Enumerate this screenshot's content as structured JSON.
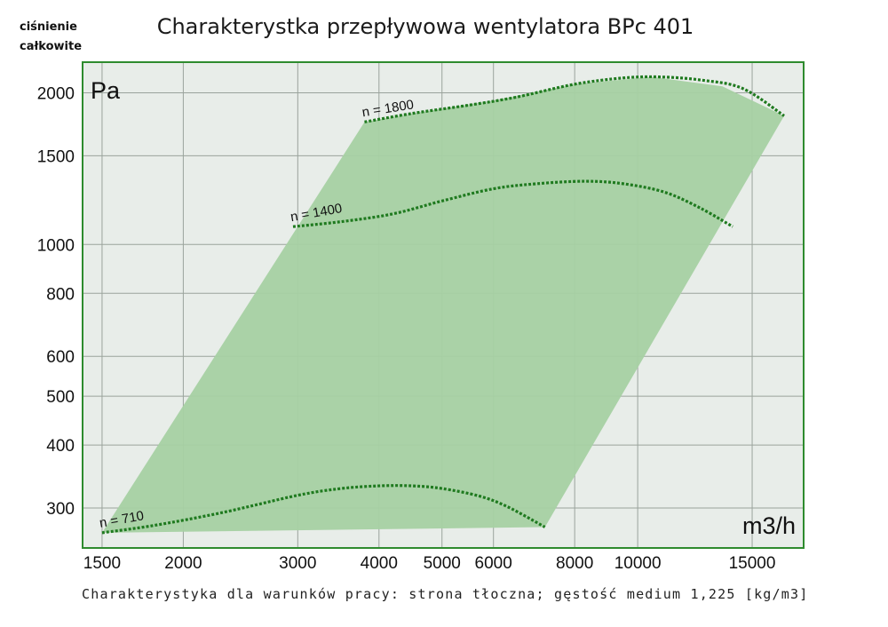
{
  "header": {
    "ylabel_line1": "ciśnienie",
    "ylabel_line2": "całkowite",
    "title": "Charakterystka przepływowa wentylatora BPc 401"
  },
  "footnote": "Charakterystyka dla warunków pracy: strona tłoczna; gęstość medium 1,225 [kg/m3]",
  "colors": {
    "frame": "#2e8b2e",
    "plot_background": "#e8ede9",
    "grid": "#9aa39c",
    "region_fill": "#a6d1a3",
    "curve": "#1f7a1f"
  },
  "chart_data": {
    "type": "line",
    "title": "Charakterystka przepływowa wentylatora BPc 401",
    "xlabel": "m3/h",
    "ylabel": "Pa",
    "x_scale": "log",
    "y_scale": "log",
    "xlim": [
      1400,
      18000
    ],
    "ylim": [
      250,
      2300
    ],
    "grid": true,
    "x_ticks": [
      1500,
      2000,
      3000,
      4000,
      5000,
      6000,
      8000,
      10000,
      15000
    ],
    "x_tick_labels": [
      "1500",
      "2000",
      "3000",
      "4000",
      "5000",
      "6000",
      "8000",
      "10000",
      "15000"
    ],
    "y_ticks": [
      300,
      400,
      500,
      600,
      800,
      1000,
      1500,
      2000
    ],
    "y_tick_labels": [
      "300",
      "400",
      "500",
      "600",
      "800",
      "1000",
      "1500",
      "2000"
    ],
    "operating_region": [
      [
        1500,
        268
      ],
      [
        3800,
        1750
      ],
      [
        4500,
        1820
      ],
      [
        6000,
        1930
      ],
      [
        8000,
        2080
      ],
      [
        10500,
        2150
      ],
      [
        13500,
        2060
      ],
      [
        16800,
        1800
      ],
      [
        7200,
        275
      ]
    ],
    "series": [
      {
        "name": "n = 1800",
        "x": [
          3800,
          4500,
          5500,
          6500,
          8000,
          9500,
          10800,
          12500,
          14500,
          16800
        ],
        "y": [
          1750,
          1820,
          1890,
          1960,
          2080,
          2140,
          2150,
          2120,
          2040,
          1800
        ]
      },
      {
        "name": "n = 1400",
        "x": [
          2950,
          3500,
          4200,
          5000,
          6000,
          7000,
          8300,
          9500,
          11000,
          12500,
          14000
        ],
        "y": [
          1085,
          1110,
          1150,
          1220,
          1290,
          1320,
          1335,
          1320,
          1270,
          1180,
          1085
        ]
      },
      {
        "name": "n = 710",
        "x": [
          1500,
          1800,
          2300,
          3000,
          3500,
          4000,
          4500,
          5000,
          5700,
          6300,
          7200
        ],
        "y": [
          268,
          277,
          294,
          318,
          328,
          332,
          332,
          328,
          317,
          302,
          275
        ]
      }
    ]
  }
}
